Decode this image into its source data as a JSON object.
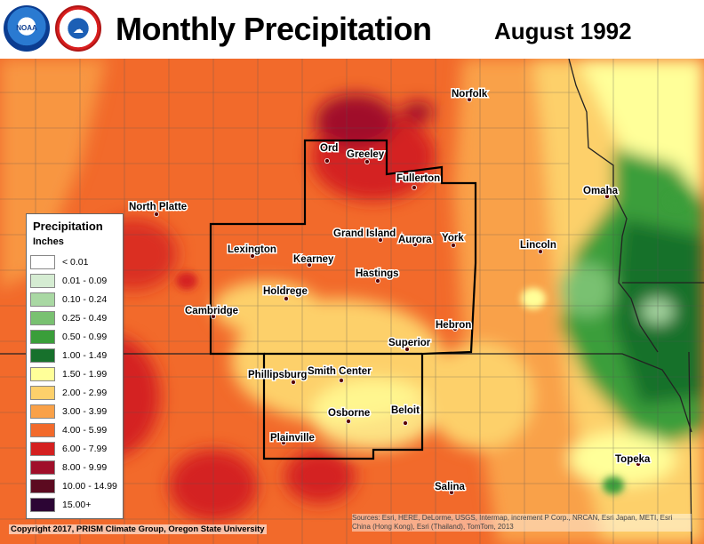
{
  "header": {
    "title": "Monthly Precipitation",
    "date": "August 1992",
    "noaa_logo_text": "NOAA",
    "nws_logo_text": "☁"
  },
  "legend": {
    "title": "Precipitation",
    "units": "Inches",
    "items": [
      {
        "label": "< 0.01",
        "color": "#ffffff"
      },
      {
        "label": "0.01 - 0.09",
        "color": "#d5ecd2"
      },
      {
        "label": "0.10 - 0.24",
        "color": "#a9d8a3"
      },
      {
        "label": "0.25 - 0.49",
        "color": "#79c171"
      },
      {
        "label": "0.50 - 0.99",
        "color": "#3a9e3a"
      },
      {
        "label": "1.00 - 1.49",
        "color": "#17712c"
      },
      {
        "label": "1.50 - 1.99",
        "color": "#ffff99"
      },
      {
        "label": "2.00 - 2.99",
        "color": "#fdd06b"
      },
      {
        "label": "3.00 - 3.99",
        "color": "#f9a148"
      },
      {
        "label": "4.00 - 5.99",
        "color": "#f26a2b"
      },
      {
        "label": "6.00 - 7.99",
        "color": "#d42020"
      },
      {
        "label": "8.00 - 9.99",
        "color": "#a00f2a"
      },
      {
        "label": "10.00 - 14.99",
        "color": "#5c0a20"
      },
      {
        "label": "15.00+",
        "color": "#2c0534"
      }
    ]
  },
  "cities": [
    {
      "name": "Norfolk"
    },
    {
      "name": "Ord"
    },
    {
      "name": "Greeley"
    },
    {
      "name": "Fullerton"
    },
    {
      "name": "Omaha"
    },
    {
      "name": "North Platte"
    },
    {
      "name": "Grand Island"
    },
    {
      "name": "Aurora"
    },
    {
      "name": "York"
    },
    {
      "name": "Lincoln"
    },
    {
      "name": "Lexington"
    },
    {
      "name": "Kearney"
    },
    {
      "name": "Hastings"
    },
    {
      "name": "Holdrege"
    },
    {
      "name": "Cambridge"
    },
    {
      "name": "Hebron"
    },
    {
      "name": "Superior"
    },
    {
      "name": "Phillipsburg"
    },
    {
      "name": "Smith Center"
    },
    {
      "name": "Osborne"
    },
    {
      "name": "Beloit"
    },
    {
      "name": "Plainville"
    },
    {
      "name": "Topeka"
    },
    {
      "name": "Salina"
    }
  ],
  "footer": {
    "copyright": "Copyright 2017, PRISM Climate Group, Oregon State University",
    "attribution": "Sources: Esri, HERE, DeLorme, USGS, Intermap, increment P Corp., NRCAN, Esri Japan, METI, Esri China (Hong Kong), Esri (Thailand), TomTom, 2013"
  }
}
